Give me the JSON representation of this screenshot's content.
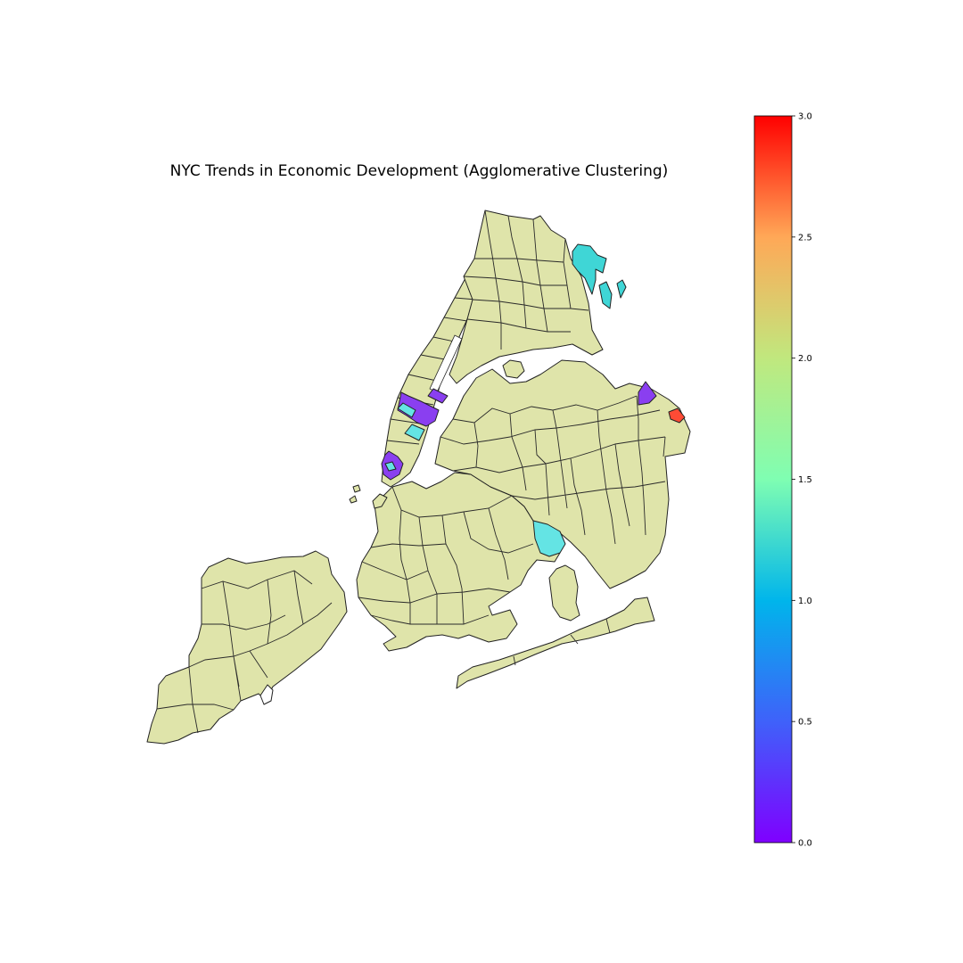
{
  "title": "NYC Trends in Economic Development (Agglomerative Clustering)",
  "colorbar": {
    "min": 0.0,
    "max": 3.0,
    "ticks": [
      "0.0",
      "0.5",
      "1.0",
      "1.5",
      "2.0",
      "2.5",
      "3.0"
    ],
    "colormap": "rainbow"
  },
  "colors": {
    "cluster_0": "#8a3ff0",
    "cluster_1": "#3fd6d6",
    "cluster_2": "#dfe4aa",
    "cluster_3": "#ff4b35",
    "border": "#222222",
    "background": "#ffffff"
  },
  "legend_placement": "right"
}
